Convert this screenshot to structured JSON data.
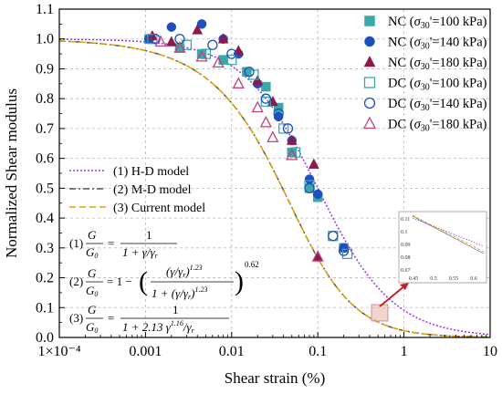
{
  "chart_data": {
    "type": "scatter",
    "xlabel": "Shear strain (%)",
    "ylabel": "Normalized Shear modulus",
    "xscale": "log",
    "xlim": [
      0.0001,
      10
    ],
    "ylim": [
      0.0,
      1.1
    ],
    "x_tick_labels": [
      "1×10⁻⁴",
      "0.001",
      "0.01",
      "0.1",
      "1",
      "10"
    ],
    "y_tick_labels": [
      "0.0",
      "0.1",
      "0.2",
      "0.3",
      "0.4",
      "0.5",
      "0.6",
      "0.7",
      "0.8",
      "0.9",
      "1.0",
      "1.1"
    ],
    "grid": true,
    "legend_position": "top-right",
    "colors": {
      "nc100": "#3aa8a8",
      "nc140": "#1f4fbf",
      "nc180": "#8b1a4a",
      "dc100": "#3aa8a8",
      "dc140": "#1f4fbf",
      "dc180": "#c0407a",
      "hd": "#9b30ff",
      "md": "#555555",
      "current": "#e0a000"
    },
    "series": [
      {
        "name": "NC (σ30'=100 kPa)",
        "marker": "filled-square",
        "color_key": "nc100",
        "points": [
          [
            0.0011,
            1.0
          ],
          [
            0.0025,
            0.97
          ],
          [
            0.0045,
            0.95
          ],
          [
            0.008,
            0.93
          ],
          [
            0.015,
            0.89
          ],
          [
            0.025,
            0.84
          ],
          [
            0.035,
            0.77
          ],
          [
            0.05,
            0.62
          ],
          [
            0.08,
            0.5
          ],
          [
            0.1,
            0.47
          ],
          [
            0.2,
            0.3
          ]
        ]
      },
      {
        "name": "NC (σ30'=140 kPa)",
        "marker": "filled-circle",
        "color_key": "nc140",
        "points": [
          [
            0.0011,
            1.0
          ],
          [
            0.002,
            1.04
          ],
          [
            0.0045,
            1.05
          ],
          [
            0.008,
            1.0
          ],
          [
            0.012,
            0.95
          ],
          [
            0.02,
            0.85
          ],
          [
            0.035,
            0.74
          ],
          [
            0.05,
            0.66
          ],
          [
            0.08,
            0.53
          ],
          [
            0.1,
            0.48
          ],
          [
            0.2,
            0.3
          ]
        ]
      },
      {
        "name": "NC (σ30'=180 kPa)",
        "marker": "filled-triangle",
        "color_key": "nc180",
        "points": [
          [
            0.0012,
            1.01
          ],
          [
            0.002,
            0.99
          ],
          [
            0.004,
            1.03
          ],
          [
            0.008,
            1.0
          ],
          [
            0.012,
            0.96
          ],
          [
            0.02,
            0.86
          ],
          [
            0.03,
            0.79
          ],
          [
            0.05,
            0.66
          ],
          [
            0.09,
            0.58
          ],
          [
            0.1,
            0.27
          ]
        ]
      },
      {
        "name": "DC (σ30'=100 kPa)",
        "marker": "open-square",
        "color_key": "dc100",
        "points": [
          [
            0.0012,
            1.0
          ],
          [
            0.003,
            0.98
          ],
          [
            0.005,
            0.95
          ],
          [
            0.01,
            0.93
          ],
          [
            0.018,
            0.88
          ],
          [
            0.025,
            0.79
          ],
          [
            0.04,
            0.7
          ],
          [
            0.055,
            0.62
          ],
          [
            0.08,
            0.51
          ],
          [
            0.15,
            0.34
          ],
          [
            0.22,
            0.28
          ]
        ]
      },
      {
        "name": "DC (σ30'=140 kPa)",
        "marker": "open-circle",
        "color_key": "dc140",
        "points": [
          [
            0.0013,
            1.0
          ],
          [
            0.0025,
            1.0
          ],
          [
            0.006,
            0.98
          ],
          [
            0.01,
            0.95
          ],
          [
            0.016,
            0.89
          ],
          [
            0.025,
            0.8
          ],
          [
            0.035,
            0.75
          ],
          [
            0.045,
            0.7
          ],
          [
            0.08,
            0.5
          ],
          [
            0.15,
            0.34
          ],
          [
            0.2,
            0.29
          ]
        ]
      },
      {
        "name": "DC (σ30'=180 kPa)",
        "marker": "open-triangle",
        "color_key": "dc180",
        "points": [
          [
            0.0015,
            0.99
          ],
          [
            0.0025,
            0.97
          ],
          [
            0.0045,
            0.94
          ],
          [
            0.007,
            0.92
          ],
          [
            0.012,
            0.85
          ],
          [
            0.02,
            0.77
          ],
          [
            0.025,
            0.72
          ],
          [
            0.03,
            0.67
          ],
          [
            0.05,
            0.61
          ],
          [
            0.1,
            0.27
          ]
        ]
      }
    ],
    "models": [
      {
        "name": "(1) H-D model",
        "style": "dotted",
        "color_key": "hd",
        "gamma_r": 0.1,
        "formula": "hd"
      },
      {
        "name": "(2) M-D model",
        "style": "dash-dot",
        "color_key": "md",
        "gamma_r": 0.07,
        "formula": "md"
      },
      {
        "name": "(3) Current model",
        "style": "dashed",
        "color_key": "current",
        "gamma_r": 0.07,
        "formula": "md"
      }
    ],
    "equations": [
      {
        "prefix": "(1)",
        "text": "G/G₀ = 1 / (1 + γ/γᵣ)"
      },
      {
        "prefix": "(2)",
        "text": "G/G₀ = 1 − ((γ/γᵣ)^1.23 / (1 + (γ/γᵣ)^1.23))^0.62"
      },
      {
        "prefix": "(3)",
        "text": "G/G₀ = 1 / (1 + 2.13 γ^1.16 / γᵣ)"
      }
    ],
    "inset": {
      "x_tick_labels": [
        "0.45",
        "0.5",
        "0.55",
        "0.6"
      ],
      "y_tick_labels": [
        "0.11",
        "0.1",
        "0.09",
        "0.08",
        "0.07"
      ]
    }
  }
}
